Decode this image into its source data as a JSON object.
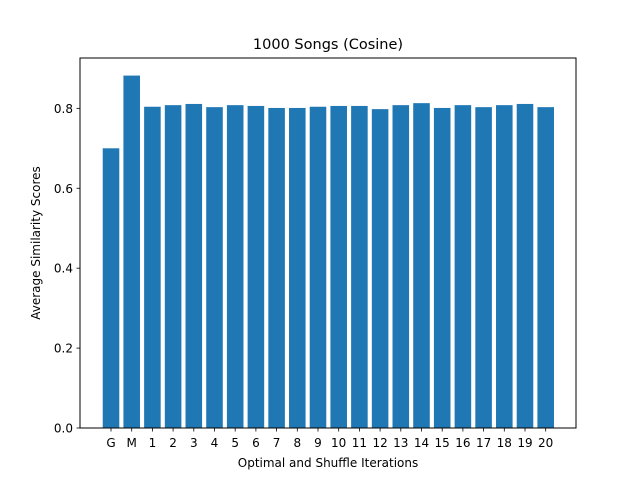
{
  "chart_data": {
    "type": "bar",
    "title": "1000 Songs (Cosine)",
    "xlabel": "Optimal and Shuffle Iterations",
    "ylabel": "Average Similarity Scores",
    "categories": [
      "G",
      "M",
      "1",
      "2",
      "3",
      "4",
      "5",
      "6",
      "7",
      "8",
      "9",
      "10",
      "11",
      "12",
      "13",
      "14",
      "15",
      "16",
      "17",
      "18",
      "19",
      "20"
    ],
    "values": [
      0.7,
      0.882,
      0.804,
      0.808,
      0.811,
      0.803,
      0.808,
      0.806,
      0.801,
      0.801,
      0.804,
      0.806,
      0.806,
      0.798,
      0.808,
      0.813,
      0.801,
      0.808,
      0.803,
      0.808,
      0.811,
      0.803
    ],
    "ylim": [
      0,
      0.926
    ],
    "yticks": [
      0.0,
      0.2,
      0.4,
      0.6,
      0.8
    ],
    "ytick_labels": [
      "0.0",
      "0.2",
      "0.4",
      "0.6",
      "0.8"
    ],
    "grid": false,
    "bar_color": "#1f77b4"
  }
}
